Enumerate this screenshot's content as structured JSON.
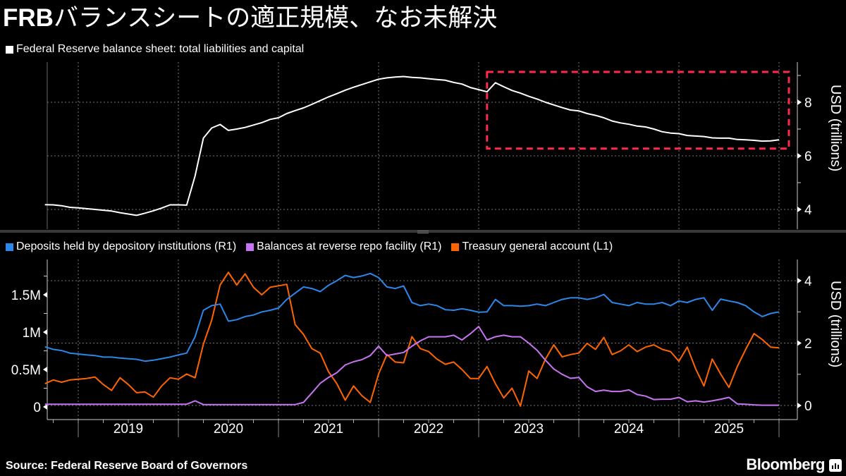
{
  "title": {
    "prefix": "FRB",
    "rest": "バランスシートの適正規模、なお未解決"
  },
  "source": "Source: Federal Reserve Board of Governors",
  "brand": "Bloomberg",
  "colors": {
    "balance_sheet": "#ffffff",
    "deposits": "#2b87ea",
    "reverse_repo": "#c774f2",
    "tga": "#ff6400",
    "highlight": "#ff2a4a"
  },
  "chart_data": [
    {
      "type": "line",
      "legend": [
        {
          "label": "Federal Reserve balance sheet: total liabilities and capital",
          "color": "#ffffff"
        }
      ],
      "ylabel": "USD (trillions)",
      "y_axis_side": "right",
      "yticks": [
        "4",
        "6",
        "8"
      ],
      "ylim": [
        3.2,
        9.5
      ],
      "grid": true,
      "annotations": [
        {
          "type": "dashed-box",
          "x_start": "2023-02",
          "x_end": "2026-01",
          "y_range": [
            6.27,
            9.13
          ],
          "color": "#ff2a4a"
        }
      ],
      "x": [
        "2018-09",
        "2018-10",
        "2018-11",
        "2018-12",
        "2019-01",
        "2019-02",
        "2019-03",
        "2019-04",
        "2019-05",
        "2019-06",
        "2019-07",
        "2019-08",
        "2019-09",
        "2019-10",
        "2019-11",
        "2019-12",
        "2020-01",
        "2020-02",
        "2020-03",
        "2020-04",
        "2020-05",
        "2020-06",
        "2020-07",
        "2020-08",
        "2020-09",
        "2020-10",
        "2020-11",
        "2020-12",
        "2021-01",
        "2021-02",
        "2021-03",
        "2021-04",
        "2021-05",
        "2021-06",
        "2021-07",
        "2021-08",
        "2021-09",
        "2021-10",
        "2021-11",
        "2021-12",
        "2022-01",
        "2022-02",
        "2022-03",
        "2022-04",
        "2022-05",
        "2022-06",
        "2022-07",
        "2022-08",
        "2022-09",
        "2022-10",
        "2022-11",
        "2022-12",
        "2023-01",
        "2023-02",
        "2023-03",
        "2023-04",
        "2023-05",
        "2023-06",
        "2023-07",
        "2023-08",
        "2023-09",
        "2023-10",
        "2023-11",
        "2023-12",
        "2024-01",
        "2024-02",
        "2024-03",
        "2024-04",
        "2024-05",
        "2024-06",
        "2024-07",
        "2024-08",
        "2024-09",
        "2024-10",
        "2024-11",
        "2024-12",
        "2025-01",
        "2025-02",
        "2025-03",
        "2025-04",
        "2025-05",
        "2025-06",
        "2025-07",
        "2025-08",
        "2025-09",
        "2025-10",
        "2025-11",
        "2025-12",
        "2026-01"
      ],
      "series": [
        {
          "name": "Federal Reserve balance sheet: total liabilities and capital",
          "values": [
            4.18,
            4.17,
            4.14,
            4.08,
            4.06,
            4.03,
            4.0,
            3.97,
            3.94,
            3.88,
            3.83,
            3.78,
            3.86,
            3.95,
            4.05,
            4.17,
            4.17,
            4.16,
            5.25,
            6.66,
            7.04,
            7.17,
            6.95,
            7.0,
            7.06,
            7.15,
            7.24,
            7.36,
            7.42,
            7.58,
            7.69,
            7.79,
            7.92,
            8.06,
            8.2,
            8.32,
            8.45,
            8.56,
            8.66,
            8.76,
            8.86,
            8.91,
            8.94,
            8.96,
            8.93,
            8.91,
            8.88,
            8.85,
            8.82,
            8.74,
            8.68,
            8.55,
            8.47,
            8.39,
            8.73,
            8.58,
            8.44,
            8.34,
            8.22,
            8.12,
            8.0,
            7.9,
            7.8,
            7.71,
            7.68,
            7.58,
            7.51,
            7.42,
            7.3,
            7.23,
            7.18,
            7.11,
            7.08,
            7.0,
            6.9,
            6.85,
            6.83,
            6.76,
            6.74,
            6.72,
            6.67,
            6.66,
            6.66,
            6.61,
            6.6,
            6.58,
            6.55,
            6.56,
            6.6
          ]
        }
      ]
    },
    {
      "type": "line",
      "legend": [
        {
          "label": "Deposits held by depository institutions (R1)",
          "color": "#2b87ea"
        },
        {
          "label": "Balances at reverse repo facility (R1)",
          "color": "#c774f2"
        },
        {
          "label": "Treasury general account  (L1)",
          "color": "#ff6400"
        }
      ],
      "ylabel_right": "USD (trillions)",
      "yticks_right": [
        "0",
        "2",
        "4"
      ],
      "yticks_left": [
        "0",
        "0.5M",
        "1M",
        "1.5M"
      ],
      "ylim_right": [
        -0.4,
        4.7
      ],
      "ylim_left": [
        -0.17,
        1.97
      ],
      "grid": true,
      "xtick_labels": [
        "2019",
        "2020",
        "2021",
        "2022",
        "2023",
        "2024",
        "2025"
      ],
      "series": [
        {
          "name": "Deposits held by depository institutions (R1)",
          "axis": "right",
          "values": [
            1.88,
            1.8,
            1.76,
            1.68,
            1.65,
            1.62,
            1.6,
            1.55,
            1.55,
            1.52,
            1.5,
            1.48,
            1.42,
            1.45,
            1.5,
            1.55,
            1.62,
            1.68,
            2.2,
            3.05,
            3.2,
            3.25,
            2.7,
            2.75,
            2.85,
            2.9,
            3.0,
            3.05,
            3.12,
            3.4,
            3.6,
            3.8,
            3.75,
            3.65,
            3.85,
            4.0,
            4.17,
            4.1,
            4.15,
            4.23,
            4.1,
            3.8,
            3.75,
            3.83,
            3.3,
            3.2,
            3.25,
            3.2,
            3.07,
            3.05,
            3.1,
            3.05,
            2.99,
            3.0,
            3.4,
            3.2,
            3.2,
            3.18,
            3.2,
            3.25,
            3.2,
            3.3,
            3.4,
            3.45,
            3.45,
            3.4,
            3.45,
            3.56,
            3.3,
            3.25,
            3.2,
            3.3,
            3.25,
            3.25,
            3.3,
            3.2,
            3.35,
            3.3,
            3.4,
            3.45,
            3.05,
            3.41,
            3.35,
            3.3,
            3.2,
            3.0,
            2.85,
            2.95,
            3.0
          ]
        },
        {
          "name": "Balances at reverse repo facility (R1)",
          "axis": "right",
          "values": [
            0.04,
            0.04,
            0.04,
            0.04,
            0.04,
            0.04,
            0.04,
            0.04,
            0.04,
            0.04,
            0.04,
            0.04,
            0.04,
            0.04,
            0.04,
            0.04,
            0.04,
            0.04,
            0.15,
            0.03,
            0.03,
            0.03,
            0.03,
            0.03,
            0.03,
            0.03,
            0.03,
            0.03,
            0.03,
            0.03,
            0.03,
            0.1,
            0.4,
            0.71,
            0.9,
            1.05,
            1.3,
            1.4,
            1.47,
            1.6,
            1.9,
            1.6,
            1.65,
            1.7,
            1.9,
            2.07,
            2.2,
            2.2,
            2.2,
            2.25,
            2.1,
            2.3,
            2.53,
            2.1,
            2.2,
            2.25,
            2.2,
            2.2,
            2.0,
            1.77,
            1.45,
            1.17,
            1.0,
            0.87,
            0.9,
            0.6,
            0.45,
            0.49,
            0.45,
            0.45,
            0.5,
            0.35,
            0.3,
            0.19,
            0.2,
            0.2,
            0.26,
            0.12,
            0.15,
            0.11,
            0.15,
            0.2,
            0.26,
            0.05,
            0.04,
            0.02,
            0.01,
            0.01,
            0.01
          ]
        },
        {
          "name": "Treasury general account  (L1)",
          "axis": "left",
          "values": [
            0.31,
            0.36,
            0.33,
            0.36,
            0.37,
            0.38,
            0.4,
            0.3,
            0.22,
            0.39,
            0.3,
            0.19,
            0.2,
            0.13,
            0.28,
            0.39,
            0.37,
            0.44,
            0.39,
            0.84,
            1.16,
            1.63,
            1.8,
            1.63,
            1.78,
            1.6,
            1.5,
            1.6,
            1.62,
            1.64,
            1.1,
            0.97,
            0.78,
            0.72,
            0.47,
            0.31,
            0.09,
            0.28,
            0.15,
            0.06,
            0.44,
            0.7,
            0.6,
            0.59,
            0.94,
            0.78,
            0.74,
            0.64,
            0.57,
            0.6,
            0.5,
            0.38,
            0.38,
            0.54,
            0.31,
            0.12,
            0.25,
            0.01,
            0.48,
            0.38,
            0.64,
            0.83,
            0.67,
            0.7,
            0.72,
            0.85,
            0.77,
            0.93,
            0.7,
            0.75,
            0.83,
            0.74,
            0.8,
            0.83,
            0.77,
            0.74,
            0.61,
            0.8,
            0.51,
            0.28,
            0.64,
            0.44,
            0.26,
            0.54,
            0.77,
            0.98,
            0.9,
            0.8,
            0.79
          ]
        }
      ]
    }
  ]
}
